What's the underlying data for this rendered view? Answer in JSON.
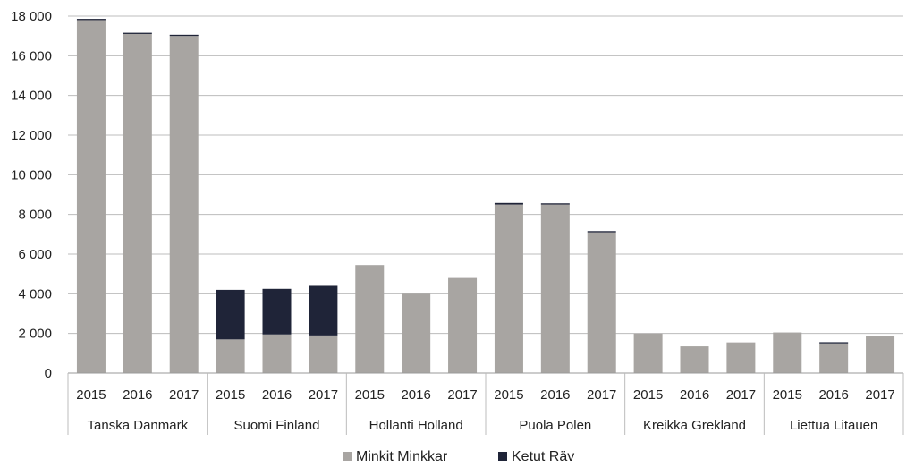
{
  "chart_data": {
    "type": "bar",
    "stacked": true,
    "groups": [
      {
        "name": "Tanska Danmark",
        "years": [
          "2015",
          "2016",
          "2017"
        ]
      },
      {
        "name": "Suomi Finland",
        "years": [
          "2015",
          "2016",
          "2017"
        ]
      },
      {
        "name": "Hollanti Holland",
        "years": [
          "2015",
          "2016",
          "2017"
        ]
      },
      {
        "name": "Puola Polen",
        "years": [
          "2015",
          "2016",
          "2017"
        ]
      },
      {
        "name": "Kreikka Grekland",
        "years": [
          "2015",
          "2016",
          "2017"
        ]
      },
      {
        "name": "Liettua Litauen",
        "years": [
          "2015",
          "2016",
          "2017"
        ]
      }
    ],
    "series": [
      {
        "name": "Minkit Minkkar",
        "color": "#a8a5a2",
        "values": [
          17800,
          17100,
          17000,
          1700,
          1950,
          1900,
          5450,
          4000,
          4800,
          8500,
          8500,
          7100,
          2000,
          1350,
          1550,
          2050,
          1500,
          1850
        ]
      },
      {
        "name": "Ketut Räv",
        "color": "#1f2438",
        "values": [
          60,
          60,
          60,
          2500,
          2300,
          2500,
          0,
          0,
          0,
          80,
          60,
          60,
          0,
          0,
          0,
          0,
          60,
          30
        ]
      }
    ],
    "y_ticks": [
      "0",
      "2 000",
      "4 000",
      "6 000",
      "8 000",
      "10 000",
      "12 000",
      "14 000",
      "16 000",
      "18 000"
    ],
    "ylim": [
      0,
      18000
    ],
    "grid": true,
    "legend_position": "bottom"
  }
}
